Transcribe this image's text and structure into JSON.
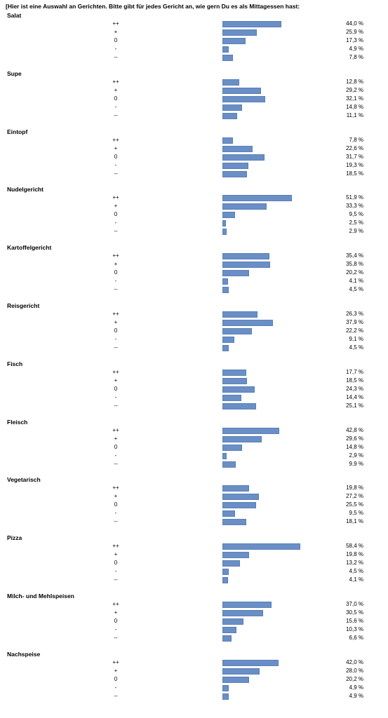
{
  "chart_data": {
    "type": "bar",
    "orientation": "horizontal",
    "title": "[Hier ist eine Auswahl an Gerichten. Bitte gibt für jedes Gericht an, wie gern Du es als Mittagessen hast:",
    "categories": [
      "++",
      "+",
      "0",
      "-",
      "--"
    ],
    "value_suffix": " %",
    "bar_color": "#6a8fc6",
    "xlim": [
      0,
      60
    ],
    "groups": [
      {
        "name": "Salat",
        "values": [
          44.0,
          25.9,
          17.3,
          4.9,
          7.8
        ],
        "labels": [
          "44,0 %",
          "25,9 %",
          "17,3 %",
          "4,9 %",
          "7,8 %"
        ]
      },
      {
        "name": "Supe",
        "values": [
          12.8,
          29.2,
          32.1,
          14.8,
          11.1
        ],
        "labels": [
          "12,8 %",
          "29,2 %",
          "32,1 %",
          "14,8 %",
          "11,1 %"
        ]
      },
      {
        "name": "Eintopf",
        "values": [
          7.8,
          22.6,
          31.7,
          19.3,
          18.5
        ],
        "labels": [
          "7,8 %",
          "22,6 %",
          "31,7 %",
          "19,3 %",
          "18,5 %"
        ]
      },
      {
        "name": "Nudelgericht",
        "values": [
          51.9,
          33.3,
          9.5,
          2.5,
          2.9
        ],
        "labels": [
          "51,9 %",
          "33,3 %",
          "9,5 %",
          "2,5 %",
          "2,9 %"
        ]
      },
      {
        "name": "Kartoffelgericht",
        "values": [
          35.4,
          35.8,
          20.2,
          4.1,
          4.5
        ],
        "labels": [
          "35,4 %",
          "35,8 %",
          "20,2 %",
          "4,1 %",
          "4,5 %"
        ]
      },
      {
        "name": "Reisgericht",
        "values": [
          26.3,
          37.9,
          22.2,
          9.1,
          4.5
        ],
        "labels": [
          "26,3 %",
          "37,9 %",
          "22,2 %",
          "9,1 %",
          "4,5 %"
        ]
      },
      {
        "name": "Fisch",
        "values": [
          17.7,
          18.5,
          24.3,
          14.4,
          25.1
        ],
        "labels": [
          "17,7 %",
          "18,5 %",
          "24,3 %",
          "14,4 %",
          "25,1 %"
        ]
      },
      {
        "name": "Fleisch",
        "values": [
          42.8,
          29.6,
          14.8,
          2.9,
          9.9
        ],
        "labels": [
          "42,8 %",
          "29,6 %",
          "14,8 %",
          "2,9 %",
          "9,9 %"
        ]
      },
      {
        "name": "Vegetarisch",
        "values": [
          19.8,
          27.2,
          25.5,
          9.5,
          18.1
        ],
        "labels": [
          "19,8 %",
          "27,2 %",
          "25,5 %",
          "9,5 %",
          "18,1 %"
        ]
      },
      {
        "name": "Pizza",
        "values": [
          58.4,
          19.8,
          13.2,
          4.5,
          4.1
        ],
        "labels": [
          "58,4 %",
          "19,8 %",
          "13,2 %",
          "4,5 %",
          "4,1 %"
        ]
      },
      {
        "name": "Milch- und Mehlspeisen",
        "values": [
          37.0,
          30.5,
          15.6,
          10.3,
          6.6
        ],
        "labels": [
          "37,0 %",
          "30,5 %",
          "15,6 %",
          "10,3 %",
          "6,6 %"
        ]
      },
      {
        "name": "Nachspeise",
        "values": [
          42.0,
          28.0,
          20.2,
          4.9,
          4.9
        ],
        "labels": [
          "42,0 %",
          "28,0 %",
          "20,2 %",
          "4,9 %",
          "4,9 %"
        ]
      }
    ]
  }
}
